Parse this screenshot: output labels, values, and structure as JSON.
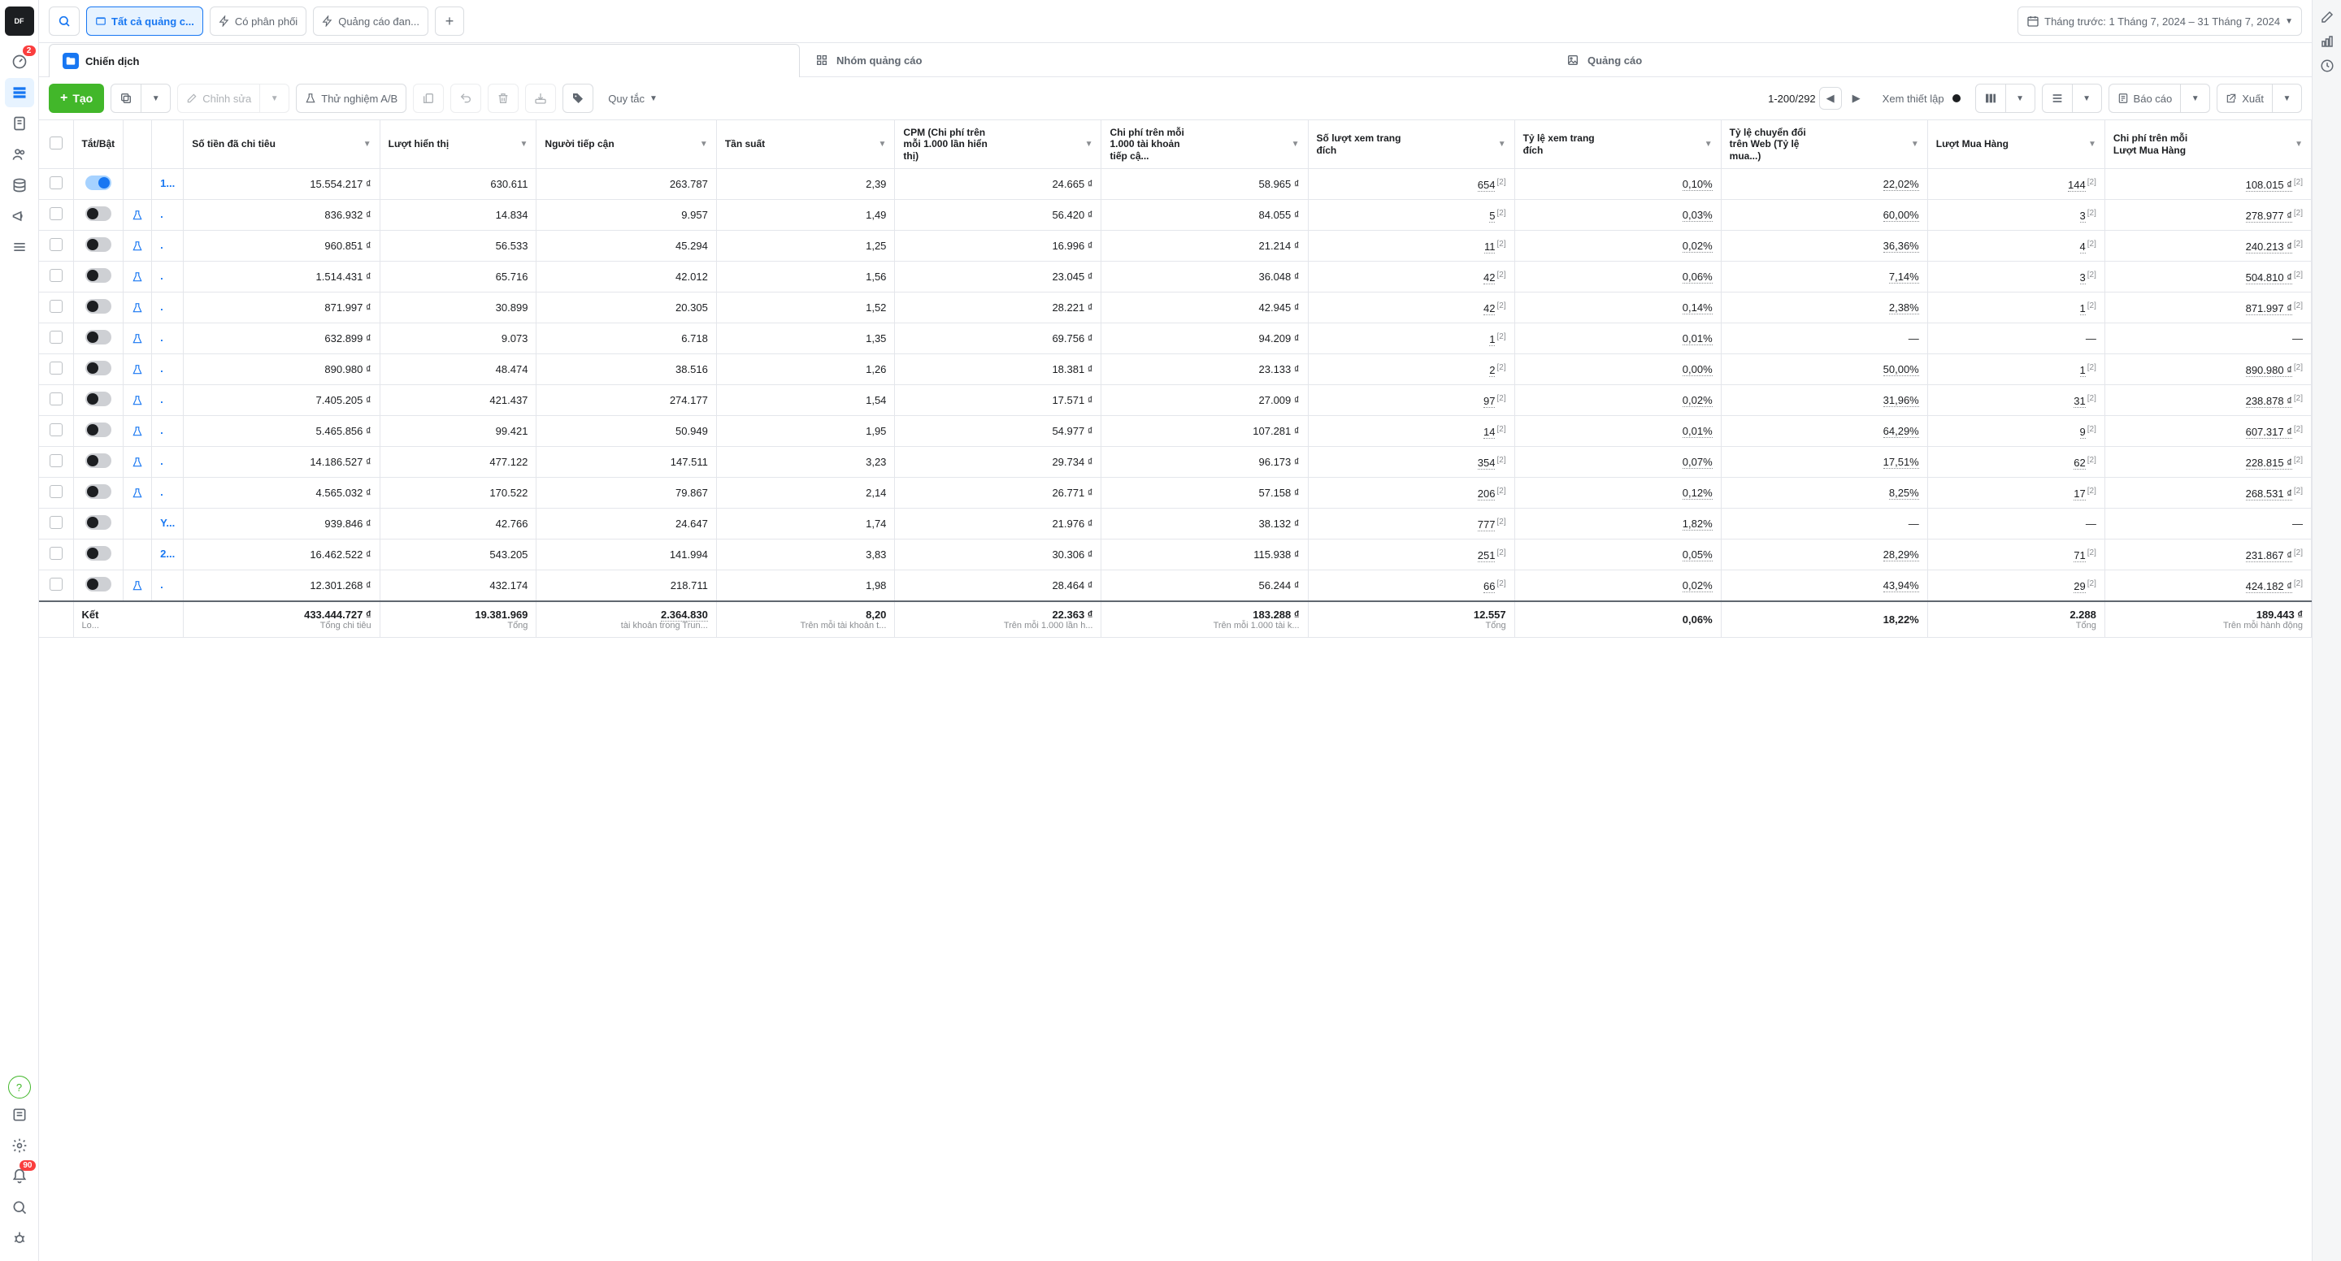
{
  "left_rail": {
    "logo_text": "DF",
    "badge_gauge": "2",
    "badge_bell": "90"
  },
  "topbar": {
    "search_tooltip": "Tìm kiếm",
    "all_campaigns": "Tất cả quảng c...",
    "distributed": "Có phân phối",
    "running_ads": "Quảng cáo đan...",
    "date_range": "Tháng trước: 1 Tháng 7, 2024 – 31 Tháng 7, 2024"
  },
  "tabs": {
    "campaign": "Chiến dịch",
    "adset": "Nhóm quảng cáo",
    "ad": "Quảng cáo"
  },
  "toolbar": {
    "create": "Tạo",
    "edit": "Chỉnh sửa",
    "ab_test": "Thử nghiệm A/B",
    "rules": "Quy tắc",
    "pagination": "1-200/292",
    "setup": "Xem thiết lập",
    "reports": "Báo cáo",
    "export": "Xuất"
  },
  "columns": [
    {
      "key": "onoff",
      "label": "Tắt/Bật"
    },
    {
      "key": "spend",
      "label": "Số tiền đã chi tiêu"
    },
    {
      "key": "impressions",
      "label": "Lượt hiển thị"
    },
    {
      "key": "reach",
      "label": "Người tiếp cận"
    },
    {
      "key": "frequency",
      "label": "Tần suất"
    },
    {
      "key": "cpm",
      "label": "CPM (Chi phí trên mỗi 1.000 lần hiển thị)"
    },
    {
      "key": "cp1k",
      "label": "Chi phí trên mỗi 1.000 tài khoản tiếp cậ..."
    },
    {
      "key": "lpviews",
      "label": "Số lượt xem trang đích"
    },
    {
      "key": "lpvrate",
      "label": "Tỷ lệ xem trang đích"
    },
    {
      "key": "cvr",
      "label": "Tỷ lệ chuyển đổi trên Web (Tỷ lệ mua...)"
    },
    {
      "key": "purchases",
      "label": "Lượt Mua Hàng"
    },
    {
      "key": "cpp",
      "label": "Chi phí trên mỗi Lượt Mua Hàng"
    }
  ],
  "rows": [
    {
      "on": true,
      "flask": false,
      "name": "1...",
      "spend": "15.554.217 ₫",
      "imp": "630.611",
      "reach": "263.787",
      "freq": "2,39",
      "cpm": "24.665 ₫",
      "cp1k": "58.965 ₫",
      "lpv": "654",
      "lpvr": "0,10%",
      "cvr": "22,02%",
      "pur": "144",
      "cpp": "108.015 ₫"
    },
    {
      "on": false,
      "flask": true,
      "name": ".",
      "spend": "836.932 ₫",
      "imp": "14.834",
      "reach": "9.957",
      "freq": "1,49",
      "cpm": "56.420 ₫",
      "cp1k": "84.055 ₫",
      "lpv": "5",
      "lpvr": "0,03%",
      "cvr": "60,00%",
      "pur": "3",
      "cpp": "278.977 ₫"
    },
    {
      "on": false,
      "flask": true,
      "name": ".",
      "spend": "960.851 ₫",
      "imp": "56.533",
      "reach": "45.294",
      "freq": "1,25",
      "cpm": "16.996 ₫",
      "cp1k": "21.214 ₫",
      "lpv": "11",
      "lpvr": "0,02%",
      "cvr": "36,36%",
      "pur": "4",
      "cpp": "240.213 ₫"
    },
    {
      "on": false,
      "flask": true,
      "name": ".",
      "spend": "1.514.431 ₫",
      "imp": "65.716",
      "reach": "42.012",
      "freq": "1,56",
      "cpm": "23.045 ₫",
      "cp1k": "36.048 ₫",
      "lpv": "42",
      "lpvr": "0,06%",
      "cvr": "7,14%",
      "pur": "3",
      "cpp": "504.810 ₫"
    },
    {
      "on": false,
      "flask": true,
      "name": ".",
      "spend": "871.997 ₫",
      "imp": "30.899",
      "reach": "20.305",
      "freq": "1,52",
      "cpm": "28.221 ₫",
      "cp1k": "42.945 ₫",
      "lpv": "42",
      "lpvr": "0,14%",
      "cvr": "2,38%",
      "pur": "1",
      "cpp": "871.997 ₫"
    },
    {
      "on": false,
      "flask": true,
      "name": ".",
      "spend": "632.899 ₫",
      "imp": "9.073",
      "reach": "6.718",
      "freq": "1,35",
      "cpm": "69.756 ₫",
      "cp1k": "94.209 ₫",
      "lpv": "1",
      "lpvr": "0,01%",
      "cvr": "—",
      "pur": "—",
      "cpp": "—"
    },
    {
      "on": false,
      "flask": true,
      "name": ".",
      "spend": "890.980 ₫",
      "imp": "48.474",
      "reach": "38.516",
      "freq": "1,26",
      "cpm": "18.381 ₫",
      "cp1k": "23.133 ₫",
      "lpv": "2",
      "lpvr": "0,00%",
      "cvr": "50,00%",
      "pur": "1",
      "cpp": "890.980 ₫"
    },
    {
      "on": false,
      "flask": true,
      "name": ".",
      "spend": "7.405.205 ₫",
      "imp": "421.437",
      "reach": "274.177",
      "freq": "1,54",
      "cpm": "17.571 ₫",
      "cp1k": "27.009 ₫",
      "lpv": "97",
      "lpvr": "0,02%",
      "cvr": "31,96%",
      "pur": "31",
      "cpp": "238.878 ₫"
    },
    {
      "on": false,
      "flask": true,
      "name": ".",
      "spend": "5.465.856 ₫",
      "imp": "99.421",
      "reach": "50.949",
      "freq": "1,95",
      "cpm": "54.977 ₫",
      "cp1k": "107.281 ₫",
      "lpv": "14",
      "lpvr": "0,01%",
      "cvr": "64,29%",
      "pur": "9",
      "cpp": "607.317 ₫"
    },
    {
      "on": false,
      "flask": true,
      "name": ".",
      "spend": "14.186.527 ₫",
      "imp": "477.122",
      "reach": "147.511",
      "freq": "3,23",
      "cpm": "29.734 ₫",
      "cp1k": "96.173 ₫",
      "lpv": "354",
      "lpvr": "0,07%",
      "cvr": "17,51%",
      "pur": "62",
      "cpp": "228.815 ₫"
    },
    {
      "on": false,
      "flask": true,
      "name": ".",
      "spend": "4.565.032 ₫",
      "imp": "170.522",
      "reach": "79.867",
      "freq": "2,14",
      "cpm": "26.771 ₫",
      "cp1k": "57.158 ₫",
      "lpv": "206",
      "lpvr": "0,12%",
      "cvr": "8,25%",
      "pur": "17",
      "cpp": "268.531 ₫"
    },
    {
      "on": false,
      "flask": false,
      "name": "Y...",
      "spend": "939.846 ₫",
      "imp": "42.766",
      "reach": "24.647",
      "freq": "1,74",
      "cpm": "21.976 ₫",
      "cp1k": "38.132 ₫",
      "lpv": "777",
      "lpvr": "1,82%",
      "cvr": "—",
      "pur": "—",
      "cpp": "—"
    },
    {
      "on": false,
      "flask": false,
      "name": "2...",
      "spend": "16.462.522 ₫",
      "imp": "543.205",
      "reach": "141.994",
      "freq": "3,83",
      "cpm": "30.306 ₫",
      "cp1k": "115.938 ₫",
      "lpv": "251",
      "lpvr": "0,05%",
      "cvr": "28,29%",
      "pur": "71",
      "cpp": "231.867 ₫"
    },
    {
      "on": false,
      "flask": true,
      "name": ".",
      "spend": "12.301.268 ₫",
      "imp": "432.174",
      "reach": "218.711",
      "freq": "1,98",
      "cpm": "28.464 ₫",
      "cp1k": "56.244 ₫",
      "lpv": "66",
      "lpvr": "0,02%",
      "cvr": "43,94%",
      "pur": "29",
      "cpp": "424.182 ₫"
    }
  ],
  "footer": {
    "label": "Kết",
    "sublabel": "Lo...",
    "spend": "433.444.727 ₫",
    "spend_sub": "Tổng chi tiêu",
    "imp": "19.381.969",
    "imp_sub": "Tổng",
    "reach": "2.364.830",
    "reach_sub": "tài khoản trong Trun...",
    "freq": "8,20",
    "freq_sub": "Trên mỗi tài khoản t...",
    "cpm": "22.363 ₫",
    "cpm_sub": "Trên mỗi 1.000 lần h...",
    "cp1k": "183.288 ₫",
    "cp1k_sub": "Trên mỗi 1.000 tài k...",
    "lpv": "12.557",
    "lpv_sub": "Tổng",
    "lpvr": "0,06%",
    "cvr": "18,22%",
    "pur": "2.288",
    "pur_sub": "Tổng",
    "cpp": "189.443 ₫",
    "cpp_sub": "Trên mỗi hành động"
  },
  "sup_note": "[2]"
}
